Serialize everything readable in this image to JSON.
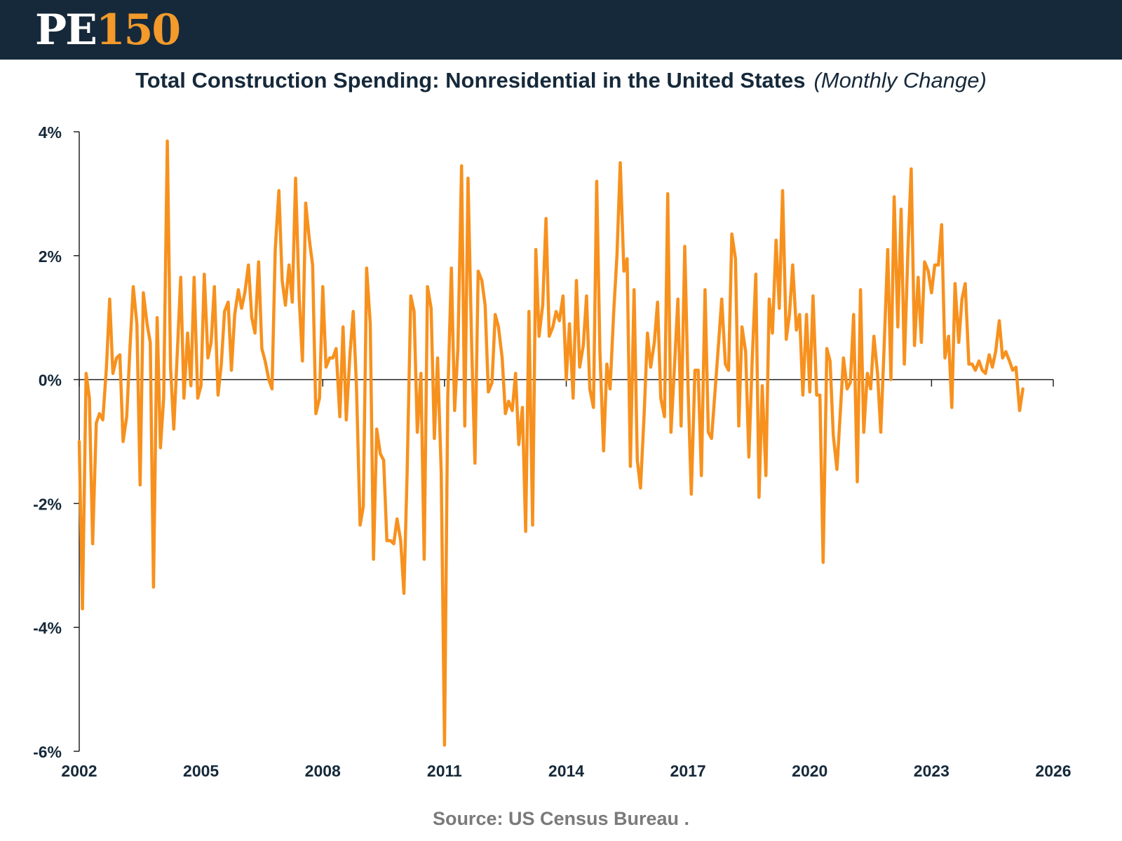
{
  "header": {
    "logo_pe": "PE",
    "logo_num": "150"
  },
  "title": {
    "main": "Total Construction Spending: Nonresidential in the United States",
    "sub": "(Monthly Change)"
  },
  "source": "Source: US Census Bureau .",
  "colors": {
    "header_bg": "#16293a",
    "accent": "#f39a2b",
    "line": "#f7911e",
    "axis": "#222222"
  },
  "chart_data": {
    "type": "line",
    "title": "Total Construction Spending: Nonresidential in the United States (Monthly Change)",
    "xlabel": "",
    "ylabel": "",
    "xlim": [
      2002,
      2026
    ],
    "ylim": [
      -6,
      4
    ],
    "x_ticks": [
      2002,
      2005,
      2008,
      2011,
      2014,
      2017,
      2020,
      2023,
      2026
    ],
    "x_tick_labels": [
      "2002",
      "2005",
      "2008",
      "2011",
      "2014",
      "2017",
      "2020",
      "2023",
      "2026"
    ],
    "y_ticks": [
      4,
      2,
      0,
      -2,
      -4,
      -6
    ],
    "y_tick_labels": [
      "4%",
      "2%",
      "0%",
      "-2%",
      "-4%",
      "-6%"
    ],
    "grid": false,
    "legend": "none",
    "series": [
      {
        "values": [
          [
            2002.0,
            -1.0
          ],
          [
            2002.08,
            -3.7
          ],
          [
            2002.17,
            0.1
          ],
          [
            2002.25,
            -0.3
          ],
          [
            2002.33,
            -2.65
          ],
          [
            2002.42,
            -0.7
          ],
          [
            2002.5,
            -0.55
          ],
          [
            2002.58,
            -0.65
          ],
          [
            2002.67,
            0.2
          ],
          [
            2002.75,
            1.3
          ],
          [
            2002.83,
            0.1
          ],
          [
            2002.92,
            0.35
          ],
          [
            2003.0,
            0.4
          ],
          [
            2003.08,
            -1.0
          ],
          [
            2003.17,
            -0.6
          ],
          [
            2003.25,
            0.5
          ],
          [
            2003.33,
            1.5
          ],
          [
            2003.42,
            0.9
          ],
          [
            2003.5,
            -1.7
          ],
          [
            2003.58,
            1.4
          ],
          [
            2003.67,
            0.9
          ],
          [
            2003.75,
            0.6
          ],
          [
            2003.83,
            -3.35
          ],
          [
            2003.92,
            1.0
          ],
          [
            2004.0,
            -1.1
          ],
          [
            2004.08,
            -0.3
          ],
          [
            2004.17,
            3.85
          ],
          [
            2004.25,
            0.2
          ],
          [
            2004.33,
            -0.8
          ],
          [
            2004.42,
            0.5
          ],
          [
            2004.5,
            1.65
          ],
          [
            2004.58,
            -0.3
          ],
          [
            2004.67,
            0.75
          ],
          [
            2004.75,
            -0.1
          ],
          [
            2004.83,
            1.65
          ],
          [
            2004.92,
            -0.3
          ],
          [
            2005.0,
            -0.1
          ],
          [
            2005.08,
            1.7
          ],
          [
            2005.17,
            0.35
          ],
          [
            2005.25,
            0.6
          ],
          [
            2005.33,
            1.5
          ],
          [
            2005.42,
            -0.25
          ],
          [
            2005.5,
            0.25
          ],
          [
            2005.58,
            1.1
          ],
          [
            2005.67,
            1.25
          ],
          [
            2005.75,
            0.15
          ],
          [
            2005.83,
            1.05
          ],
          [
            2005.92,
            1.45
          ],
          [
            2006.0,
            1.15
          ],
          [
            2006.08,
            1.4
          ],
          [
            2006.17,
            1.85
          ],
          [
            2006.25,
            1.0
          ],
          [
            2006.33,
            0.75
          ],
          [
            2006.42,
            1.9
          ],
          [
            2006.5,
            0.5
          ],
          [
            2006.58,
            0.3
          ],
          [
            2006.67,
            0.0
          ],
          [
            2006.75,
            -0.15
          ],
          [
            2006.83,
            2.1
          ],
          [
            2006.92,
            3.05
          ],
          [
            2007.0,
            1.6
          ],
          [
            2007.08,
            1.2
          ],
          [
            2007.17,
            1.85
          ],
          [
            2007.25,
            1.25
          ],
          [
            2007.33,
            3.25
          ],
          [
            2007.42,
            1.3
          ],
          [
            2007.5,
            0.3
          ],
          [
            2007.58,
            2.85
          ],
          [
            2007.67,
            2.25
          ],
          [
            2007.75,
            1.85
          ],
          [
            2007.83,
            -0.55
          ],
          [
            2007.92,
            -0.3
          ],
          [
            2008.0,
            1.5
          ],
          [
            2008.08,
            0.2
          ],
          [
            2008.17,
            0.35
          ],
          [
            2008.25,
            0.35
          ],
          [
            2008.33,
            0.5
          ],
          [
            2008.42,
            -0.6
          ],
          [
            2008.5,
            0.85
          ],
          [
            2008.58,
            -0.65
          ],
          [
            2008.67,
            0.4
          ],
          [
            2008.75,
            1.1
          ],
          [
            2008.83,
            -0.1
          ],
          [
            2008.92,
            -2.35
          ],
          [
            2009.0,
            -2.05
          ],
          [
            2009.08,
            1.8
          ],
          [
            2009.17,
            0.9
          ],
          [
            2009.25,
            -2.9
          ],
          [
            2009.33,
            -0.8
          ],
          [
            2009.42,
            -1.2
          ],
          [
            2009.5,
            -1.3
          ],
          [
            2009.58,
            -2.6
          ],
          [
            2009.67,
            -2.6
          ],
          [
            2009.75,
            -2.65
          ],
          [
            2009.83,
            -2.25
          ],
          [
            2009.92,
            -2.6
          ],
          [
            2010.0,
            -3.45
          ],
          [
            2010.08,
            -1.5
          ],
          [
            2010.17,
            1.35
          ],
          [
            2010.25,
            1.1
          ],
          [
            2010.33,
            -0.85
          ],
          [
            2010.42,
            0.1
          ],
          [
            2010.5,
            -2.9
          ],
          [
            2010.58,
            1.5
          ],
          [
            2010.67,
            1.15
          ],
          [
            2010.75,
            -0.95
          ],
          [
            2010.83,
            0.35
          ],
          [
            2010.92,
            -1.5
          ],
          [
            2011.0,
            -5.9
          ],
          [
            2011.08,
            -0.3
          ],
          [
            2011.17,
            1.8
          ],
          [
            2011.25,
            -0.5
          ],
          [
            2011.33,
            0.5
          ],
          [
            2011.42,
            3.45
          ],
          [
            2011.5,
            -0.75
          ],
          [
            2011.58,
            3.25
          ],
          [
            2011.67,
            0.5
          ],
          [
            2011.75,
            -1.35
          ],
          [
            2011.83,
            1.75
          ],
          [
            2011.92,
            1.6
          ],
          [
            2012.0,
            1.2
          ],
          [
            2012.08,
            -0.2
          ],
          [
            2012.17,
            -0.05
          ],
          [
            2012.25,
            1.05
          ],
          [
            2012.33,
            0.85
          ],
          [
            2012.42,
            0.35
          ],
          [
            2012.5,
            -0.55
          ],
          [
            2012.58,
            -0.35
          ],
          [
            2012.67,
            -0.5
          ],
          [
            2012.75,
            0.1
          ],
          [
            2012.83,
            -1.05
          ],
          [
            2012.92,
            -0.45
          ],
          [
            2013.0,
            -2.45
          ],
          [
            2013.08,
            1.1
          ],
          [
            2013.17,
            -2.35
          ],
          [
            2013.25,
            2.1
          ],
          [
            2013.33,
            0.7
          ],
          [
            2013.42,
            1.2
          ],
          [
            2013.5,
            2.6
          ],
          [
            2013.58,
            0.7
          ],
          [
            2013.67,
            0.85
          ],
          [
            2013.75,
            1.1
          ],
          [
            2013.83,
            0.95
          ],
          [
            2013.92,
            1.35
          ],
          [
            2014.0,
            0.0
          ],
          [
            2014.08,
            0.9
          ],
          [
            2014.17,
            -0.3
          ],
          [
            2014.25,
            1.6
          ],
          [
            2014.33,
            0.2
          ],
          [
            2014.42,
            0.55
          ],
          [
            2014.5,
            1.35
          ],
          [
            2014.58,
            -0.15
          ],
          [
            2014.67,
            -0.45
          ],
          [
            2014.75,
            3.2
          ],
          [
            2014.83,
            0.45
          ],
          [
            2014.92,
            -1.15
          ],
          [
            2015.0,
            0.25
          ],
          [
            2015.08,
            -0.15
          ],
          [
            2015.17,
            1.1
          ],
          [
            2015.25,
            2.0
          ],
          [
            2015.33,
            3.5
          ],
          [
            2015.42,
            1.75
          ],
          [
            2015.5,
            1.95
          ],
          [
            2015.58,
            -1.4
          ],
          [
            2015.67,
            1.45
          ],
          [
            2015.75,
            -1.3
          ],
          [
            2015.83,
            -1.75
          ],
          [
            2015.92,
            -0.55
          ],
          [
            2016.0,
            0.75
          ],
          [
            2016.08,
            0.2
          ],
          [
            2016.17,
            0.6
          ],
          [
            2016.25,
            1.25
          ],
          [
            2016.33,
            -0.3
          ],
          [
            2016.42,
            -0.6
          ],
          [
            2016.5,
            3.0
          ],
          [
            2016.58,
            -0.85
          ],
          [
            2016.67,
            0.25
          ],
          [
            2016.75,
            1.3
          ],
          [
            2016.83,
            -0.75
          ],
          [
            2016.92,
            2.15
          ],
          [
            2017.0,
            -0.1
          ],
          [
            2017.08,
            -1.85
          ],
          [
            2017.17,
            0.15
          ],
          [
            2017.25,
            0.15
          ],
          [
            2017.33,
            -1.55
          ],
          [
            2017.42,
            1.45
          ],
          [
            2017.5,
            -0.85
          ],
          [
            2017.58,
            -0.95
          ],
          [
            2017.67,
            -0.15
          ],
          [
            2017.75,
            0.55
          ],
          [
            2017.83,
            1.3
          ],
          [
            2017.92,
            0.25
          ],
          [
            2018.0,
            0.15
          ],
          [
            2018.08,
            2.35
          ],
          [
            2018.17,
            1.95
          ],
          [
            2018.25,
            -0.75
          ],
          [
            2018.33,
            0.85
          ],
          [
            2018.42,
            0.45
          ],
          [
            2018.5,
            -1.25
          ],
          [
            2018.58,
            0.3
          ],
          [
            2018.67,
            1.7
          ],
          [
            2018.75,
            -1.9
          ],
          [
            2018.83,
            -0.1
          ],
          [
            2018.92,
            -1.55
          ],
          [
            2019.0,
            1.3
          ],
          [
            2019.08,
            0.75
          ],
          [
            2019.17,
            2.25
          ],
          [
            2019.25,
            1.15
          ],
          [
            2019.33,
            3.05
          ],
          [
            2019.42,
            0.65
          ],
          [
            2019.5,
            1.05
          ],
          [
            2019.58,
            1.85
          ],
          [
            2019.67,
            0.8
          ],
          [
            2019.75,
            1.05
          ],
          [
            2019.83,
            -0.25
          ],
          [
            2019.92,
            1.05
          ],
          [
            2020.0,
            -0.2
          ],
          [
            2020.08,
            1.35
          ],
          [
            2020.17,
            -0.25
          ],
          [
            2020.25,
            -0.25
          ],
          [
            2020.33,
            -2.95
          ],
          [
            2020.42,
            0.5
          ],
          [
            2020.5,
            0.3
          ],
          [
            2020.58,
            -0.9
          ],
          [
            2020.67,
            -1.45
          ],
          [
            2020.75,
            -0.55
          ],
          [
            2020.83,
            0.35
          ],
          [
            2020.92,
            -0.15
          ],
          [
            2021.0,
            -0.05
          ],
          [
            2021.08,
            1.05
          ],
          [
            2021.17,
            -1.65
          ],
          [
            2021.25,
            1.45
          ],
          [
            2021.33,
            -0.85
          ],
          [
            2021.42,
            0.1
          ],
          [
            2021.5,
            -0.15
          ],
          [
            2021.58,
            0.7
          ],
          [
            2021.67,
            0.1
          ],
          [
            2021.75,
            -0.85
          ],
          [
            2021.83,
            0.5
          ],
          [
            2021.92,
            2.1
          ],
          [
            2022.0,
            0.0
          ],
          [
            2022.08,
            2.95
          ],
          [
            2022.17,
            0.85
          ],
          [
            2022.25,
            2.75
          ],
          [
            2022.33,
            0.25
          ],
          [
            2022.42,
            2.1
          ],
          [
            2022.5,
            3.4
          ],
          [
            2022.58,
            0.55
          ],
          [
            2022.67,
            1.65
          ],
          [
            2022.75,
            0.6
          ],
          [
            2022.83,
            1.9
          ],
          [
            2022.92,
            1.75
          ],
          [
            2023.0,
            1.4
          ],
          [
            2023.08,
            1.85
          ],
          [
            2023.17,
            1.85
          ],
          [
            2023.25,
            2.5
          ],
          [
            2023.33,
            0.35
          ],
          [
            2023.42,
            0.7
          ],
          [
            2023.5,
            -0.45
          ],
          [
            2023.58,
            1.55
          ],
          [
            2023.67,
            0.6
          ],
          [
            2023.75,
            1.3
          ],
          [
            2023.83,
            1.55
          ],
          [
            2023.92,
            0.25
          ],
          [
            2024.0,
            0.25
          ],
          [
            2024.08,
            0.15
          ],
          [
            2024.17,
            0.3
          ],
          [
            2024.25,
            0.15
          ],
          [
            2024.33,
            0.1
          ],
          [
            2024.42,
            0.4
          ],
          [
            2024.5,
            0.2
          ],
          [
            2024.58,
            0.45
          ],
          [
            2024.67,
            0.95
          ],
          [
            2024.75,
            0.35
          ],
          [
            2024.83,
            0.45
          ],
          [
            2024.92,
            0.3
          ],
          [
            2025.0,
            0.15
          ],
          [
            2025.08,
            0.2
          ],
          [
            2025.17,
            -0.5
          ],
          [
            2025.25,
            -0.15
          ]
        ]
      }
    ]
  }
}
